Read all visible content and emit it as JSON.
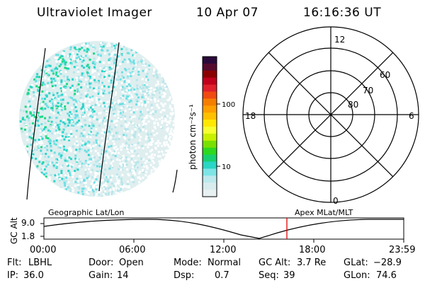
{
  "header": {
    "instrument": "Ultraviolet Imager",
    "date": "10 Apr 07",
    "time": "16:16:36 UT"
  },
  "colorbar": {
    "label": "photon cm⁻²s⁻¹",
    "ticks": [
      "100",
      "10"
    ],
    "colors": [
      "#2a0a3a",
      "#560b2e",
      "#8b0000",
      "#c0001c",
      "#e0202c",
      "#f04a10",
      "#f57e00",
      "#ff9f00",
      "#ffc000",
      "#ffe800",
      "#f6ff30",
      "#c8f000",
      "#78e000",
      "#2ed81e",
      "#18d070",
      "#2ad6c4",
      "#7ee4e6",
      "#bde9ec",
      "#d8ecee",
      "#e8f0f1"
    ]
  },
  "polar": {
    "labels": [
      "12",
      "18",
      "6",
      "0"
    ],
    "lat_labels": [
      "60",
      "70",
      "80"
    ]
  },
  "timeline": {
    "left_label": "Geographic Lat/Lon",
    "right_label": "Apex MLat/MLT",
    "axis_label": "GC Alt",
    "y_ticks": [
      "9.0",
      "1.8"
    ],
    "x_ticks": [
      "00:00",
      "06:00",
      "12:00",
      "18:00",
      "23:59"
    ],
    "marker_color": "#e00000"
  },
  "status": {
    "row1": [
      {
        "key": "Flt:",
        "value": "LBHL"
      },
      {
        "key": "Door:",
        "value": "Open"
      },
      {
        "key": "Mode:",
        "value": "Normal"
      },
      {
        "key": "GC Alt:",
        "value": "3.7 Re"
      },
      {
        "key": "GLat:",
        "value": "−28.9"
      }
    ],
    "row2": [
      {
        "key": "IP:",
        "value": "36.0"
      },
      {
        "key": "Gain:",
        "value": "14"
      },
      {
        "key": "Dsp:",
        "value": "0.7"
      },
      {
        "key": "Seq:",
        "value": "39"
      },
      {
        "key": "GLon:",
        "value": "74.6"
      }
    ]
  }
}
